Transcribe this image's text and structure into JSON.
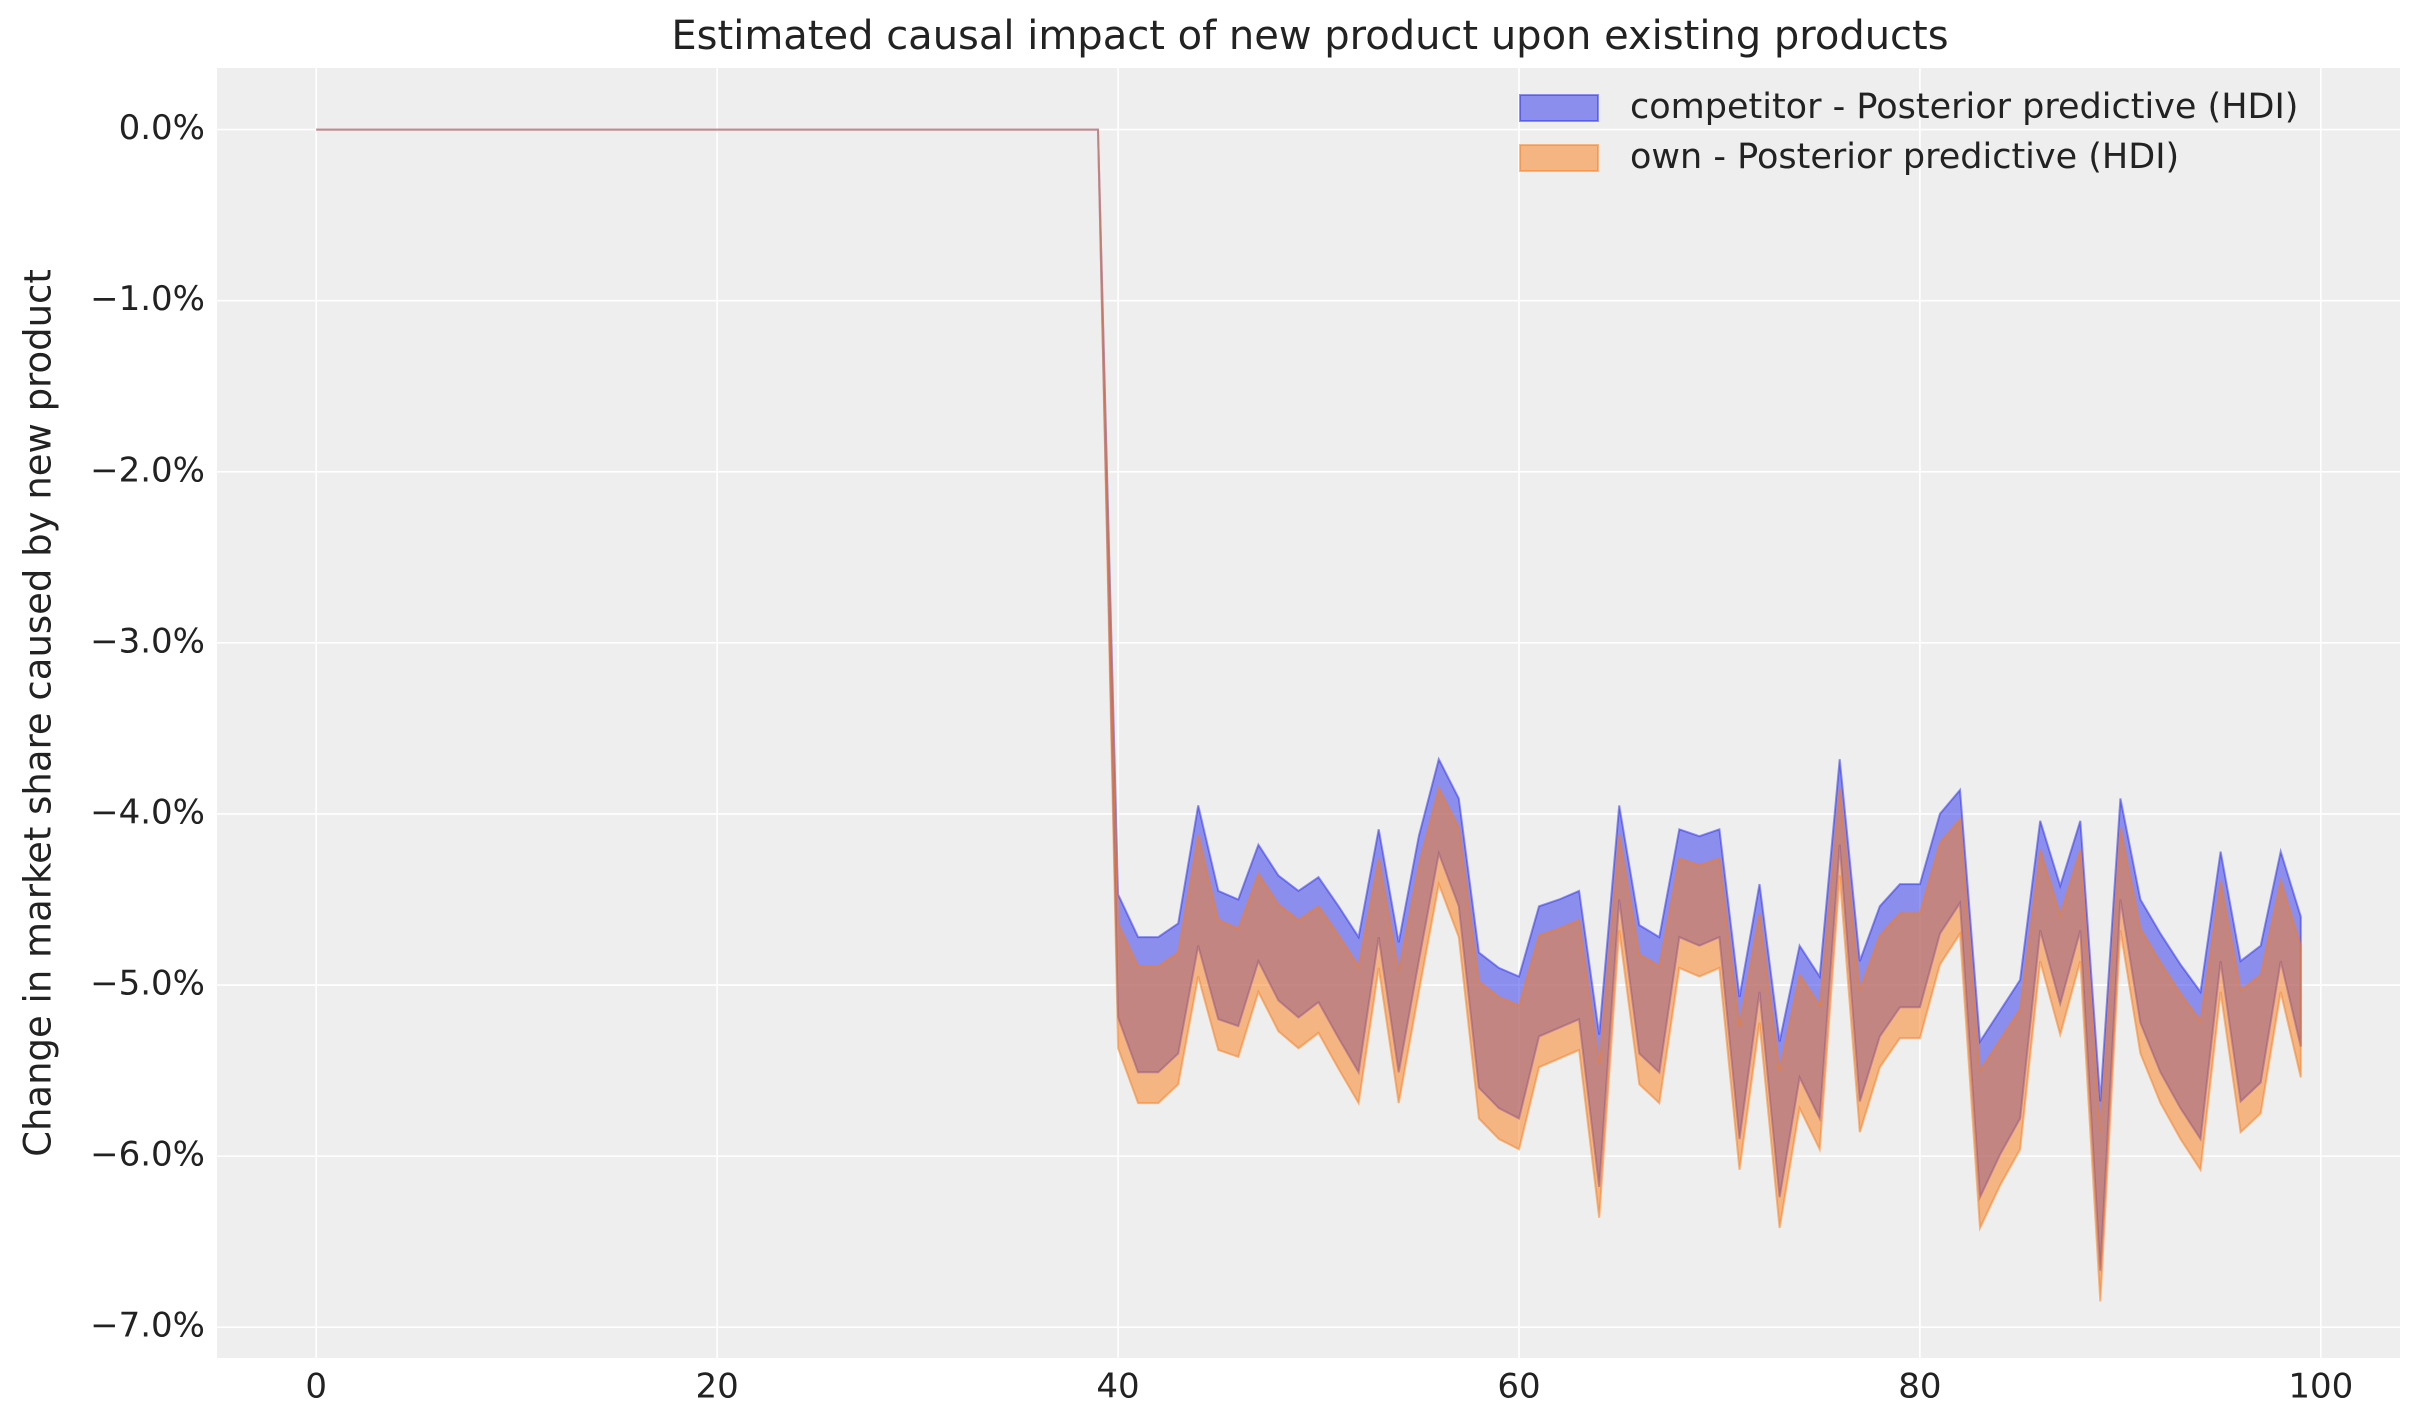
{
  "chart_data": {
    "type": "band",
    "title": "Estimated causal impact of new product upon existing products",
    "ylabel": "Change in market share caused by new product",
    "x": [
      0,
      1,
      2,
      3,
      4,
      5,
      6,
      7,
      8,
      9,
      10,
      11,
      12,
      13,
      14,
      15,
      16,
      17,
      18,
      19,
      20,
      21,
      22,
      23,
      24,
      25,
      26,
      27,
      28,
      29,
      30,
      31,
      32,
      33,
      34,
      35,
      36,
      37,
      38,
      39,
      40,
      41,
      42,
      43,
      44,
      45,
      46,
      47,
      48,
      49,
      50,
      51,
      52,
      53,
      54,
      55,
      56,
      57,
      58,
      59,
      60,
      61,
      62,
      63,
      64,
      65,
      66,
      67,
      68,
      69,
      70,
      71,
      72,
      73,
      74,
      75,
      76,
      77,
      78,
      79,
      80,
      81,
      82,
      83,
      84,
      85,
      86,
      87,
      88,
      89,
      90,
      91,
      92,
      93,
      94,
      95,
      96,
      97,
      98,
      99
    ],
    "series": [
      {
        "name": "competitor - Posterior predictive (HDI)",
        "color": "#2a2eec",
        "upper": [
          0,
          0,
          0,
          0,
          0,
          0,
          0,
          0,
          0,
          0,
          0,
          0,
          0,
          0,
          0,
          0,
          0,
          0,
          0,
          0,
          0,
          0,
          0,
          0,
          0,
          0,
          0,
          0,
          0,
          0,
          0,
          0,
          0,
          0,
          0,
          0,
          0,
          0,
          0,
          0,
          -4.47,
          -4.72,
          -4.72,
          -4.64,
          -3.95,
          -4.45,
          -4.5,
          -4.18,
          -4.36,
          -4.45,
          -4.37,
          -4.54,
          -4.72,
          -4.09,
          -4.75,
          -4.13,
          -3.68,
          -3.91,
          -4.81,
          -4.9,
          -4.95,
          -4.54,
          -4.5,
          -4.45,
          -5.29,
          -3.95,
          -4.65,
          -4.72,
          -4.09,
          -4.13,
          -4.09,
          -5.07,
          -4.41,
          -5.33,
          -4.77,
          -4.95,
          -3.68,
          -4.86,
          -4.54,
          -4.41,
          -4.41,
          -4.0,
          -3.86,
          -5.33,
          -5.15,
          -4.97,
          -4.04,
          -4.42,
          -4.04,
          -5.68,
          -3.91,
          -4.5,
          -4.7,
          -4.88,
          -5.04,
          -4.22,
          -4.86,
          -4.77,
          -4.22,
          -4.6
        ],
        "lower": [
          0,
          0,
          0,
          0,
          0,
          0,
          0,
          0,
          0,
          0,
          0,
          0,
          0,
          0,
          0,
          0,
          0,
          0,
          0,
          0,
          0,
          0,
          0,
          0,
          0,
          0,
          0,
          0,
          0,
          0,
          0,
          0,
          0,
          0,
          0,
          0,
          0,
          0,
          0,
          0,
          -5.19,
          -5.51,
          -5.51,
          -5.4,
          -4.77,
          -5.2,
          -5.24,
          -4.86,
          -5.09,
          -5.19,
          -5.1,
          -5.31,
          -5.51,
          -4.72,
          -5.51,
          -4.86,
          -4.23,
          -4.54,
          -5.6,
          -5.72,
          -5.78,
          -5.3,
          -5.25,
          -5.2,
          -6.18,
          -4.5,
          -5.4,
          -5.51,
          -4.72,
          -4.77,
          -4.72,
          -5.9,
          -5.04,
          -6.24,
          -5.54,
          -5.78,
          -4.18,
          -5.68,
          -5.3,
          -5.13,
          -5.13,
          -4.7,
          -4.52,
          -6.24,
          -5.99,
          -5.78,
          -4.68,
          -5.11,
          -4.68,
          -6.67,
          -4.5,
          -5.22,
          -5.51,
          -5.72,
          -5.9,
          -4.86,
          -5.68,
          -5.57,
          -4.86,
          -5.36
        ]
      },
      {
        "name": "own - Posterior predictive (HDI)",
        "color": "#fa7c17",
        "upper": [
          0,
          0,
          0,
          0,
          0,
          0,
          0,
          0,
          0,
          0,
          0,
          0,
          0,
          0,
          0,
          0,
          0,
          0,
          0,
          0,
          0,
          0,
          0,
          0,
          0,
          0,
          0,
          0,
          0,
          0,
          0,
          0,
          0,
          0,
          0,
          0,
          0,
          0,
          0,
          0,
          -4.64,
          -4.89,
          -4.89,
          -4.81,
          -4.12,
          -4.62,
          -4.67,
          -4.35,
          -4.53,
          -4.62,
          -4.54,
          -4.71,
          -4.89,
          -4.26,
          -4.92,
          -4.3,
          -3.85,
          -4.08,
          -4.98,
          -5.07,
          -5.12,
          -4.71,
          -4.67,
          -4.62,
          -5.46,
          -4.12,
          -4.82,
          -4.89,
          -4.26,
          -4.3,
          -4.26,
          -5.24,
          -4.58,
          -5.5,
          -4.94,
          -5.12,
          -3.85,
          -5.03,
          -4.71,
          -4.58,
          -4.58,
          -4.17,
          -4.03,
          -5.5,
          -5.32,
          -5.14,
          -4.21,
          -4.59,
          -4.21,
          -5.85,
          -4.08,
          -4.67,
          -4.87,
          -5.05,
          -5.21,
          -4.39,
          -5.03,
          -4.94,
          -4.39,
          -4.77
        ],
        "lower": [
          0,
          0,
          0,
          0,
          0,
          0,
          0,
          0,
          0,
          0,
          0,
          0,
          0,
          0,
          0,
          0,
          0,
          0,
          0,
          0,
          0,
          0,
          0,
          0,
          0,
          0,
          0,
          0,
          0,
          0,
          0,
          0,
          0,
          0,
          0,
          0,
          0,
          0,
          0,
          0,
          -5.37,
          -5.69,
          -5.69,
          -5.58,
          -4.95,
          -5.38,
          -5.42,
          -5.04,
          -5.27,
          -5.37,
          -5.28,
          -5.49,
          -5.69,
          -4.9,
          -5.69,
          -5.04,
          -4.41,
          -4.72,
          -5.78,
          -5.9,
          -5.96,
          -5.48,
          -5.43,
          -5.38,
          -6.36,
          -4.68,
          -5.58,
          -5.69,
          -4.9,
          -4.95,
          -4.9,
          -6.08,
          -5.22,
          -6.42,
          -5.72,
          -5.96,
          -4.36,
          -5.86,
          -5.48,
          -5.31,
          -5.31,
          -4.88,
          -4.7,
          -6.42,
          -6.17,
          -5.96,
          -4.86,
          -5.29,
          -4.86,
          -6.85,
          -4.68,
          -5.4,
          -5.69,
          -5.9,
          -6.08,
          -5.04,
          -5.86,
          -5.75,
          -5.04,
          -5.54
        ]
      }
    ],
    "xlim": [
      -4.95,
      103.95
    ],
    "xticks": [
      0,
      20,
      40,
      60,
      80,
      100
    ],
    "ylim": [
      -7.18,
      0.36
    ],
    "yticks": [
      {
        "value": 0,
        "label": "0.0%"
      },
      {
        "value": -1,
        "label": "−1.0%"
      },
      {
        "value": -2,
        "label": "−2.0%"
      },
      {
        "value": -3,
        "label": "−3.0%"
      },
      {
        "value": -4,
        "label": "−4.0%"
      },
      {
        "value": -5,
        "label": "−5.0%"
      },
      {
        "value": -6,
        "label": "−6.0%"
      },
      {
        "value": -7,
        "label": "−7.0%"
      }
    ],
    "grid": true,
    "legend": "upper right"
  }
}
